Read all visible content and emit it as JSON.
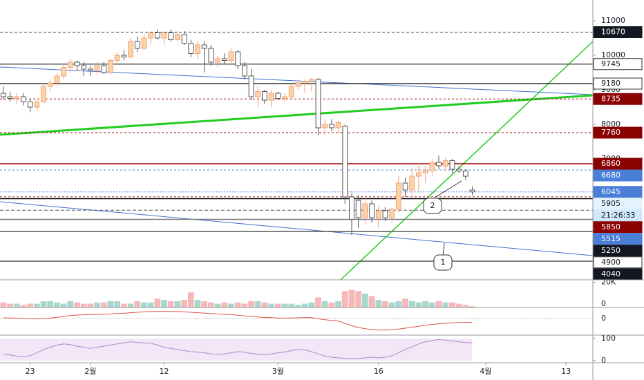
{
  "chart_data": {
    "type": "candlestick",
    "log_scale": false,
    "xlim": [
      -0.5,
      88
    ],
    "xticks": [
      {
        "value": 4,
        "label": "23"
      },
      {
        "value": 13,
        "label": "2월"
      },
      {
        "value": 24,
        "label": "12"
      },
      {
        "value": 41,
        "label": "3월"
      },
      {
        "value": 56,
        "label": "16"
      },
      {
        "value": 72,
        "label": "4월"
      },
      {
        "value": 84,
        "label": "13"
      }
    ],
    "ylim": [
      3500,
      11600
    ],
    "yticks": [
      11000,
      10000,
      9000,
      8000,
      7000
    ],
    "up_color": "#f4a07a",
    "up_fill": "#fbd3a6",
    "down_color": "#555555",
    "down_fill": "#ffffff",
    "open": [
      8900,
      8800,
      8750,
      8800,
      8650,
      8500,
      8650,
      9100,
      9200,
      9400,
      9650,
      9800,
      9700,
      9600,
      9550,
      9700,
      9500,
      9850,
      10000,
      9950,
      10400,
      10200,
      10500,
      10650,
      10500,
      10650,
      10450,
      10600,
      10350,
      10050,
      10300,
      10200,
      9800,
      9900,
      9850,
      10100,
      9700,
      9400,
      8800,
      8950,
      8700,
      8900,
      8750,
      8800,
      9100,
      9200,
      9250,
      9300,
      7900,
      8000,
      7900,
      7950,
      5900,
      5800,
      5300,
      5700,
      5300,
      5500,
      5300,
      5550,
      6300,
      6100,
      6500,
      6600,
      6650,
      6900,
      6800,
      6950,
      6700,
      6650,
      6100
    ],
    "high": [
      9100,
      8950,
      8900,
      8900,
      8750,
      8700,
      9200,
      9300,
      9500,
      9750,
      9900,
      9850,
      9800,
      9700,
      9800,
      9800,
      9900,
      10100,
      10150,
      10500,
      10550,
      10600,
      10700,
      10750,
      10700,
      10750,
      10700,
      10700,
      10450,
      10400,
      10400,
      10300,
      10000,
      10050,
      10200,
      10150,
      9800,
      9600,
      9100,
      9000,
      9000,
      8950,
      8900,
      9150,
      9300,
      9300,
      9350,
      9350,
      8150,
      8150,
      8100,
      8000,
      6000,
      5950,
      5900,
      5800,
      5650,
      5600,
      5600,
      6500,
      6450,
      6750,
      6900,
      6800,
      7000,
      7100,
      7050,
      7000,
      6800,
      6700,
      6200
    ],
    "low": [
      8700,
      8650,
      8600,
      8550,
      8350,
      8400,
      8600,
      8950,
      9100,
      9300,
      9500,
      9550,
      9400,
      9400,
      9450,
      9450,
      9450,
      9750,
      9850,
      9900,
      10100,
      10150,
      10350,
      10450,
      10300,
      10400,
      10400,
      10300,
      9950,
      9900,
      9500,
      9700,
      9650,
      9750,
      9700,
      9600,
      9300,
      8700,
      8500,
      8600,
      8500,
      8700,
      8650,
      8750,
      9000,
      8900,
      8950,
      7700,
      7700,
      7800,
      7750,
      5700,
      4800,
      5000,
      5100,
      5150,
      5000,
      5200,
      5150,
      5450,
      5900,
      5950,
      6050,
      6300,
      6500,
      6700,
      6650,
      6600,
      6600,
      6400,
      5950
    ],
    "close": [
      8800,
      8750,
      8800,
      8650,
      8500,
      8650,
      9100,
      9200,
      9400,
      9650,
      9800,
      9700,
      9600,
      9550,
      9700,
      9500,
      9850,
      10000,
      9950,
      10400,
      10200,
      10500,
      10650,
      10500,
      10650,
      10450,
      10600,
      10350,
      10050,
      10300,
      10200,
      9800,
      9900,
      9850,
      10100,
      9700,
      9400,
      8800,
      8950,
      8700,
      8900,
      8750,
      8800,
      9100,
      9200,
      9250,
      9300,
      7900,
      8000,
      7900,
      8050,
      5900,
      5250,
      5300,
      5700,
      5300,
      5500,
      5300,
      5550,
      6300,
      6100,
      6500,
      6600,
      6650,
      6900,
      6800,
      6950,
      6700,
      6650,
      6500,
      6045
    ],
    "volume_ylim": [
      0,
      22000
    ],
    "volume_yticks": [
      {
        "value": 20000,
        "label": "20K"
      },
      0
    ],
    "volume_up_color": "#a8d8cc",
    "volume_down_color": "#f6b8b8",
    "volume": [
      4000,
      3000,
      3000,
      2000,
      3000,
      3000,
      5000,
      5000,
      4000,
      3000,
      5000,
      4000,
      3000,
      3000,
      4000,
      4000,
      5000,
      5000,
      3000,
      3000,
      5000,
      4000,
      4000,
      7000,
      6000,
      5000,
      5000,
      6000,
      12000,
      6000,
      5000,
      4000,
      3000,
      4000,
      3000,
      4000,
      3000,
      5000,
      5000,
      4000,
      3000,
      3000,
      3000,
      3000,
      2000,
      3000,
      4000,
      8000,
      5000,
      4000,
      5000,
      13000,
      14000,
      13000,
      11000,
      9000,
      6000,
      5000,
      4000,
      5000,
      7000,
      5000,
      4000,
      5000,
      4000,
      5000,
      4000,
      4000,
      3000,
      2000,
      1000
    ],
    "macd_ylim": [
      -1200,
      800
    ],
    "macd_yticks": [
      0
    ],
    "macd_color": "#e0524a",
    "macd": [
      50,
      40,
      30,
      10,
      -20,
      -30,
      0,
      40,
      90,
      150,
      210,
      250,
      270,
      280,
      300,
      310,
      330,
      360,
      380,
      420,
      450,
      480,
      500,
      520,
      520,
      510,
      500,
      480,
      450,
      420,
      390,
      360,
      330,
      300,
      280,
      240,
      190,
      140,
      110,
      80,
      60,
      40,
      30,
      40,
      50,
      60,
      70,
      -20,
      -90,
      -140,
      -180,
      -350,
      -520,
      -650,
      -740,
      -800,
      -830,
      -840,
      -820,
      -760,
      -700,
      -630,
      -560,
      -490,
      -430,
      -380,
      -340,
      -310,
      -290,
      -280,
      -290
    ],
    "stoch_ylim": [
      -10,
      115
    ],
    "stoch_yticks": [
      100,
      0
    ],
    "stoch_color": "#7b3fa0",
    "stoch": [
      30,
      25,
      20,
      18,
      22,
      35,
      50,
      60,
      70,
      75,
      72,
      65,
      60,
      55,
      60,
      65,
      70,
      75,
      80,
      85,
      82,
      80,
      78,
      70,
      60,
      55,
      50,
      45,
      40,
      38,
      35,
      30,
      28,
      30,
      35,
      40,
      38,
      32,
      28,
      25,
      30,
      35,
      38,
      45,
      50,
      48,
      40,
      30,
      20,
      15,
      12,
      10,
      8,
      10,
      12,
      15,
      12,
      15,
      22,
      35,
      50,
      62,
      75,
      85,
      90,
      95,
      92,
      88,
      85,
      82,
      80
    ],
    "levels": [
      {
        "value": 10670,
        "color": "#333333",
        "dash": "4 3",
        "label_bg": "#131722",
        "label_color": "#ffffff"
      },
      {
        "value": 9745,
        "color": "#555555",
        "dash": "",
        "label_bg": "#ffffff",
        "label_color": "#131722"
      },
      {
        "value": 9180,
        "color": "#333333",
        "dash": "",
        "label_bg": "#ffffff",
        "label_color": "#131722"
      },
      {
        "value": 8735,
        "color": "#a01010",
        "dash": "3 3",
        "label_bg": "#8b0000",
        "label_color": "#ffffff"
      },
      {
        "value": 7760,
        "color": "#a01010",
        "dash": "3 3",
        "label_bg": "#8b0000",
        "label_color": "#ffffff"
      },
      {
        "value": 6860,
        "color": "#9b0000",
        "dash": "",
        "label_bg": "#8b0000",
        "label_color": "#ffffff"
      },
      {
        "value": 6680,
        "color": "#4a7fd8",
        "dash": "3 3",
        "label_bg": "#4a7fd8",
        "label_color": "#ffffff"
      },
      {
        "value": 6045,
        "color": "#4a7fd8",
        "dash": "2 2",
        "label_bg": "#4a7fd8",
        "label_color": "#ffffff"
      },
      {
        "value": 5905,
        "color": "#c03030",
        "dash": "3 3",
        "label_bg": "#e3f2fd",
        "label_color": "#131722"
      },
      {
        "value": 5850,
        "color": "#000000",
        "dash": "",
        "label_bg": "#8b0000",
        "label_color": "#ffffff"
      },
      {
        "value": 5515,
        "color": "#555555",
        "dash": "5 3",
        "label_bg": "#4a7fd8",
        "label_color": "#ffffff"
      },
      {
        "value": 5250,
        "color": "#777777",
        "dash": "",
        "label_bg": "#131722",
        "label_color": "#ffffff"
      },
      {
        "value": 4900,
        "color": "#555555",
        "dash": "",
        "label_bg": "#ffffff",
        "label_color": "#131722"
      },
      {
        "value": 4040,
        "color": "#555555",
        "dash": "",
        "label_bg": "#131722",
        "label_color": "#ffffff"
      }
    ],
    "countdown": "21:26:33",
    "annotations": [
      "1",
      "2"
    ]
  }
}
